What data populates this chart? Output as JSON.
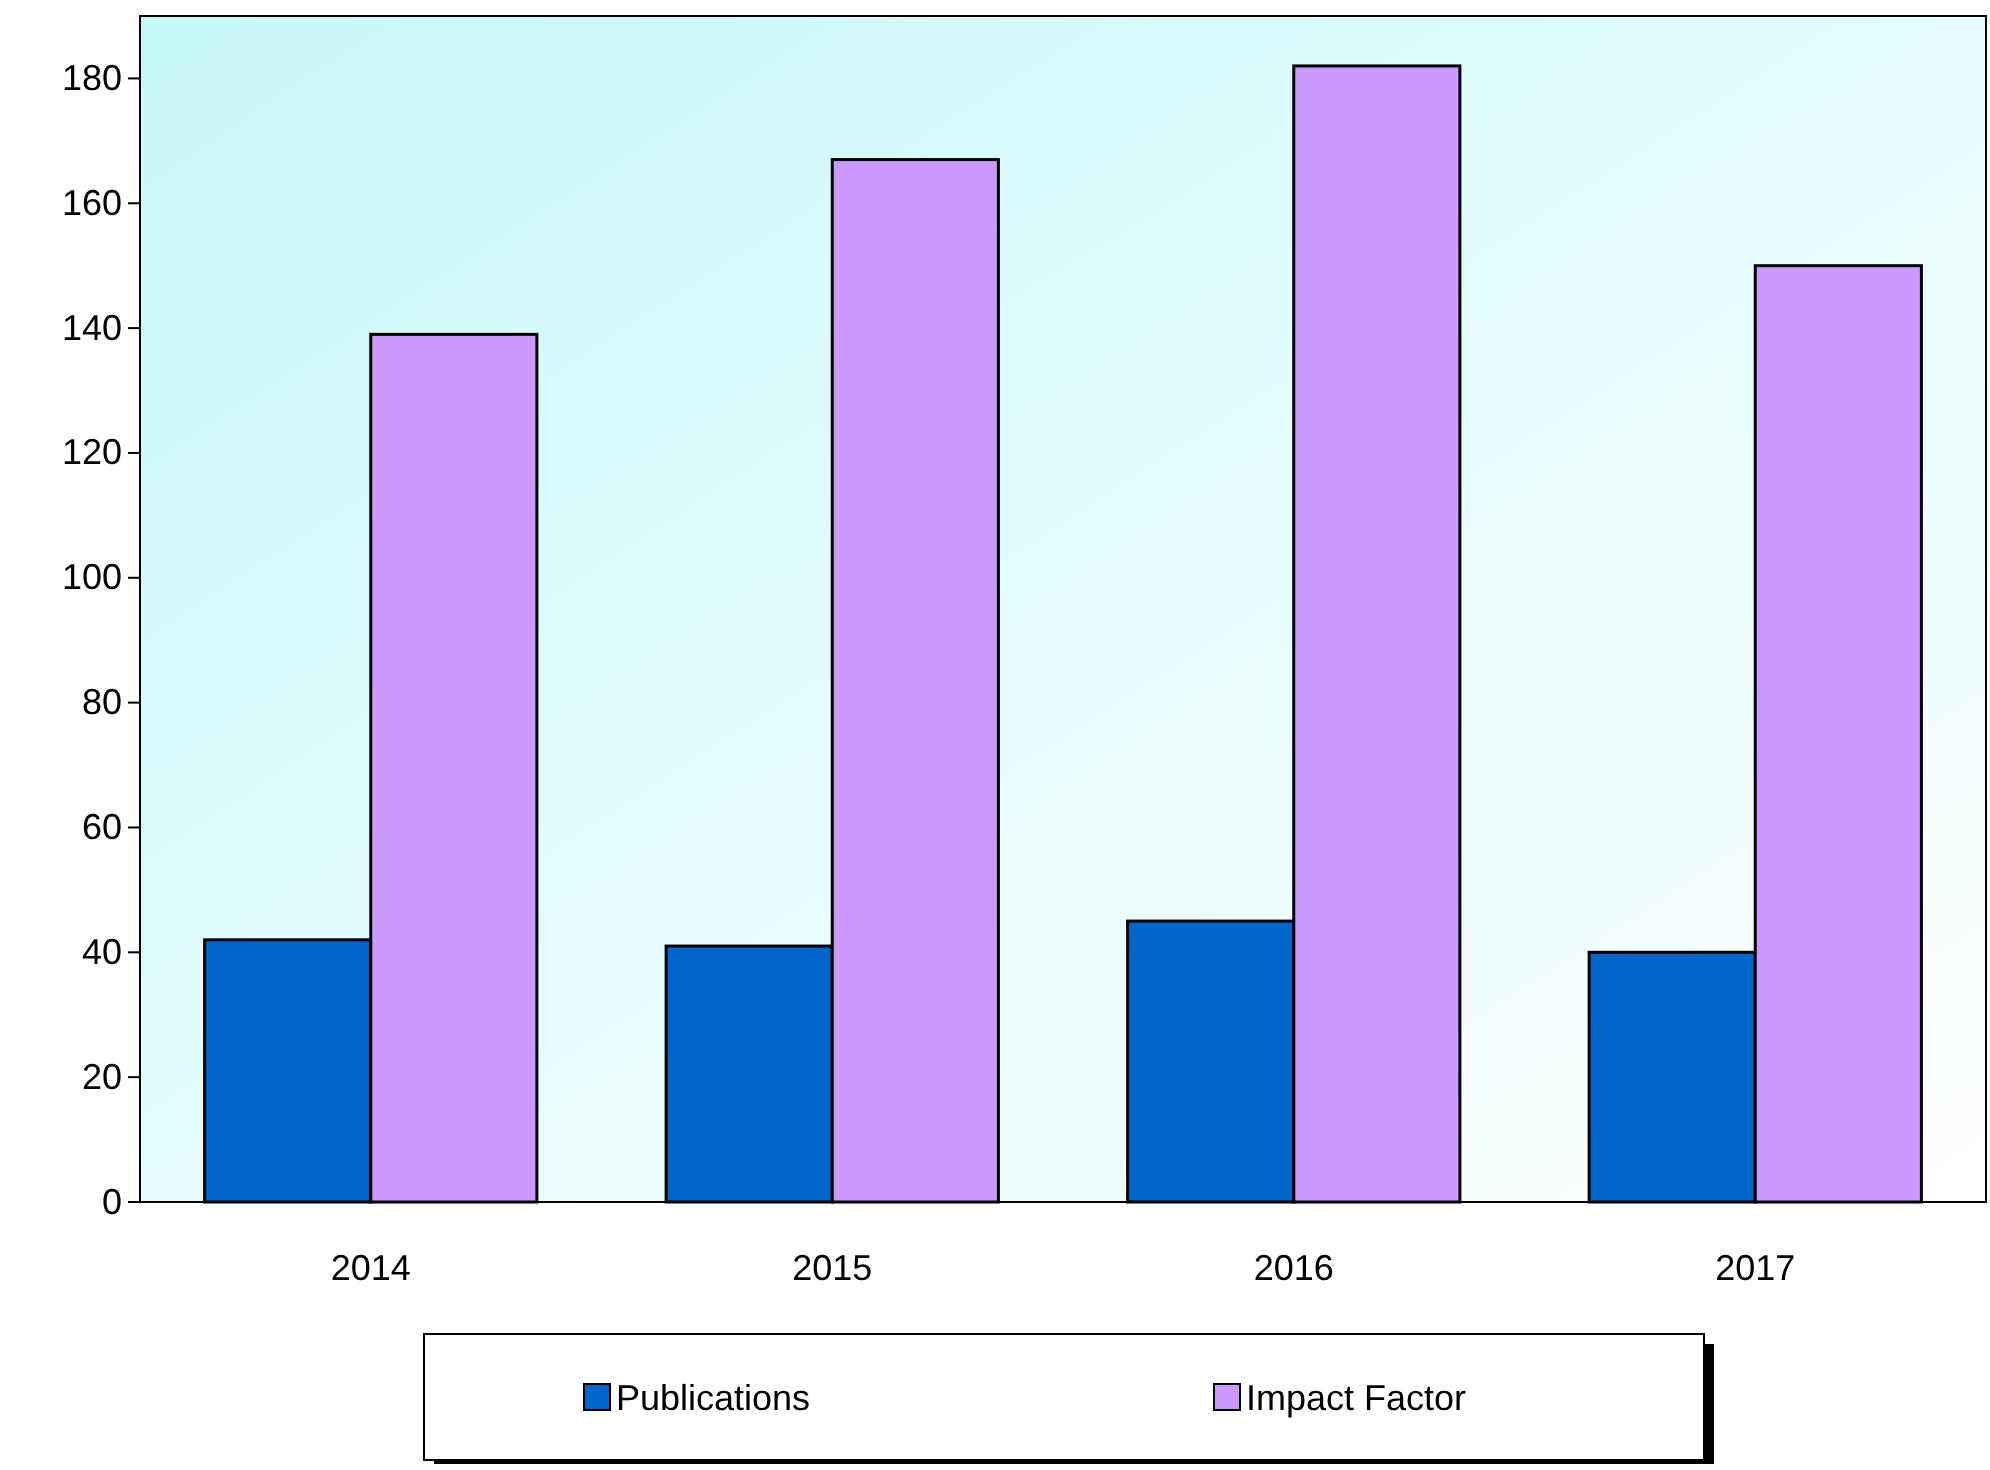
{
  "chart_data": {
    "type": "bar",
    "categories": [
      "2014",
      "2015",
      "2016",
      "2017"
    ],
    "series": [
      {
        "name": "Publications",
        "color": "#0066cc",
        "values": [
          42,
          41,
          45,
          40
        ]
      },
      {
        "name": "Impact Factor",
        "color": "#cc99ff",
        "values": [
          139,
          167,
          182,
          150
        ]
      }
    ],
    "ylim": [
      0,
      190
    ],
    "yticks": [
      0,
      20,
      40,
      60,
      80,
      100,
      120,
      140,
      160,
      180
    ],
    "grid": false,
    "legend": "bottom"
  }
}
